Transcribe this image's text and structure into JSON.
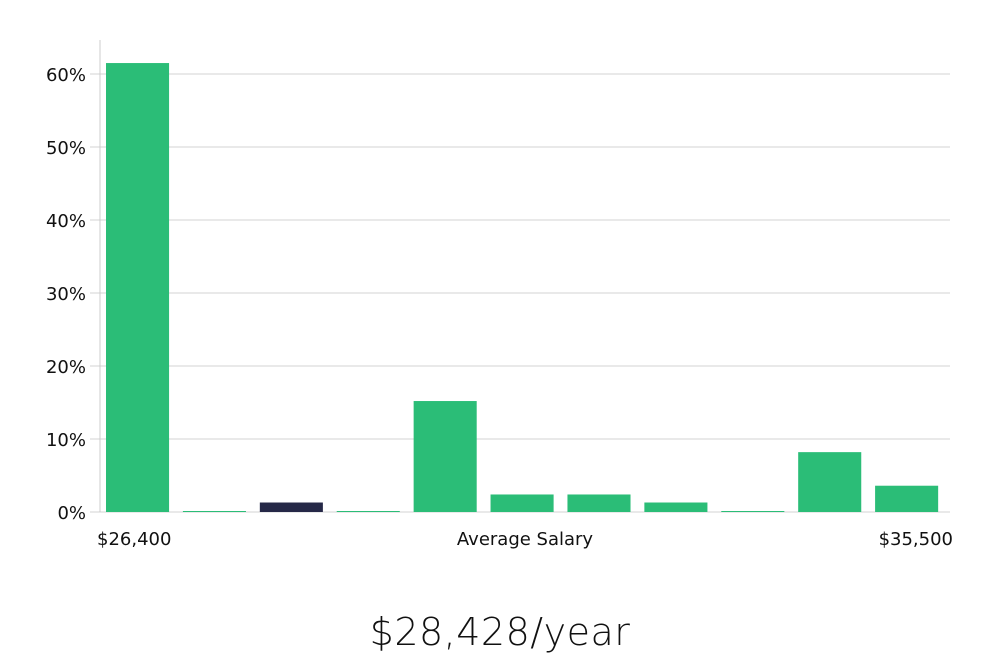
{
  "chart_data": {
    "type": "bar",
    "y_ticks": [
      "0%",
      "10%",
      "20%",
      "30%",
      "40%",
      "50%",
      "60%"
    ],
    "ylim": [
      0,
      65
    ],
    "grid": true,
    "values": [
      61.5,
      0.1,
      1.3,
      0.1,
      15.2,
      2.4,
      2.4,
      1.3,
      0.1,
      8.2,
      3.6
    ],
    "highlight_index": 2,
    "x_min_label": "$26,400",
    "x_center_label": "Average Salary",
    "x_max_label": "$35,500",
    "colors": {
      "bar": "#2bbd77",
      "highlight": "#252847",
      "grid": "#e2e2e2",
      "axis": "#cccccc"
    }
  },
  "headline": "$28,428/year"
}
